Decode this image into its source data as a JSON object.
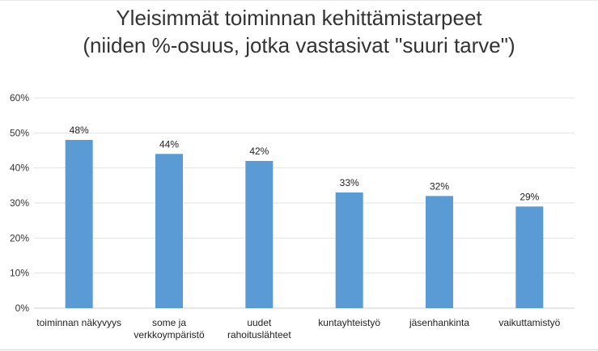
{
  "chart_data": {
    "type": "bar",
    "title": [
      "Yleisimmät toiminnan kehittämistarpeet",
      "(niiden %-osuus, jotka vastasivat \"suuri tarve\")"
    ],
    "categories": [
      [
        "toiminnan näkyvyys"
      ],
      [
        "some ja",
        "verkkoympäristö"
      ],
      [
        "uudet",
        "rahoituslähteet"
      ],
      [
        "kuntayhteistyö"
      ],
      [
        "jäsenhankinta"
      ],
      [
        "vaikuttamistyö"
      ]
    ],
    "values": [
      48,
      44,
      42,
      33,
      32,
      29
    ],
    "data_labels": [
      "48%",
      "44%",
      "42%",
      "33%",
      "32%",
      "29%"
    ],
    "ylim": [
      0,
      60
    ],
    "yticks": [
      0,
      10,
      20,
      30,
      40,
      50,
      60
    ],
    "ytick_labels": [
      "0%",
      "10%",
      "20%",
      "30%",
      "40%",
      "50%",
      "60%"
    ],
    "grid": true,
    "legend": "none",
    "bar_color": "#5B9BD5"
  }
}
